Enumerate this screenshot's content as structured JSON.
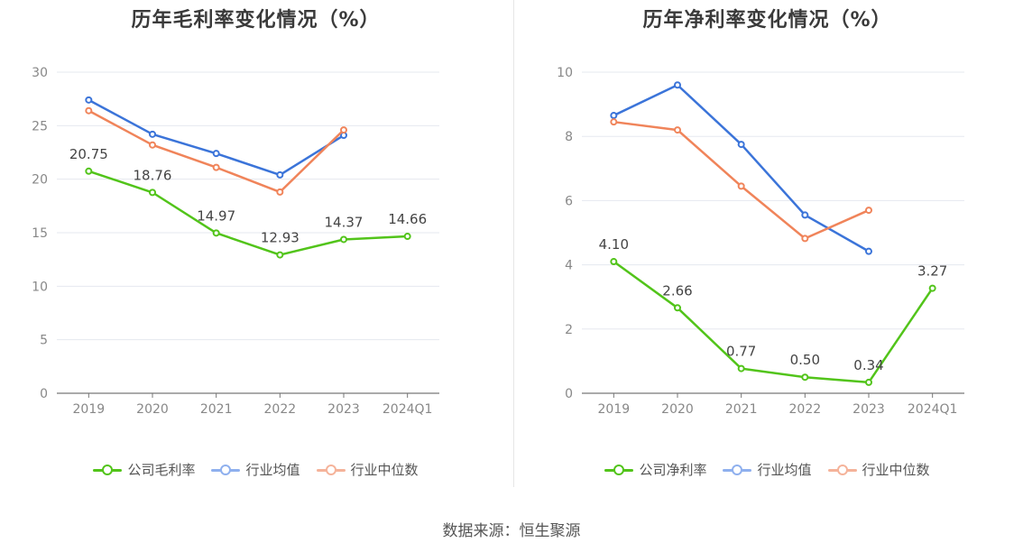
{
  "source": "数据来源：恒生聚源",
  "chart_data": [
    {
      "type": "line",
      "title": "历年毛利率变化情况（%）",
      "categories": [
        "2019",
        "2020",
        "2021",
        "2022",
        "2023",
        "2024Q1"
      ],
      "ylim": [
        0,
        30
      ],
      "yticks": [
        0,
        5,
        10,
        15,
        20,
        25,
        30
      ],
      "grid": true,
      "legend_position": "bottom",
      "series": [
        {
          "name": "公司毛利率",
          "color": "#52c41a",
          "values": [
            20.75,
            18.76,
            14.97,
            12.93,
            14.37,
            14.66
          ],
          "labels": [
            "20.75",
            "18.76",
            "14.97",
            "12.93",
            "14.37",
            "14.66"
          ]
        },
        {
          "name": "行业均值",
          "color": "#3b74d9",
          "legend_color": "#8fb0ee",
          "values": [
            27.4,
            24.2,
            22.4,
            20.4,
            24.1,
            null
          ]
        },
        {
          "name": "行业中位数",
          "color": "#f0845a",
          "legend_color": "#f5b39a",
          "values": [
            26.4,
            23.2,
            21.1,
            18.8,
            24.6,
            null
          ]
        }
      ]
    },
    {
      "type": "line",
      "title": "历年净利率变化情况（%）",
      "categories": [
        "2019",
        "2020",
        "2021",
        "2022",
        "2023",
        "2024Q1"
      ],
      "ylim": [
        0,
        10
      ],
      "yticks": [
        0,
        2,
        4,
        6,
        8,
        10
      ],
      "grid": true,
      "legend_position": "bottom",
      "series": [
        {
          "name": "公司净利率",
          "color": "#52c41a",
          "values": [
            4.1,
            2.66,
            0.77,
            0.5,
            0.34,
            3.27
          ],
          "labels": [
            "4.10",
            "2.66",
            "0.77",
            "0.50",
            "0.34",
            "3.27"
          ]
        },
        {
          "name": "行业均值",
          "color": "#3b74d9",
          "legend_color": "#8fb0ee",
          "values": [
            8.65,
            9.6,
            7.75,
            5.55,
            4.42,
            null
          ]
        },
        {
          "name": "行业中位数",
          "color": "#f0845a",
          "legend_color": "#f5b39a",
          "values": [
            8.45,
            8.2,
            6.45,
            4.82,
            5.7,
            null
          ]
        }
      ]
    }
  ]
}
